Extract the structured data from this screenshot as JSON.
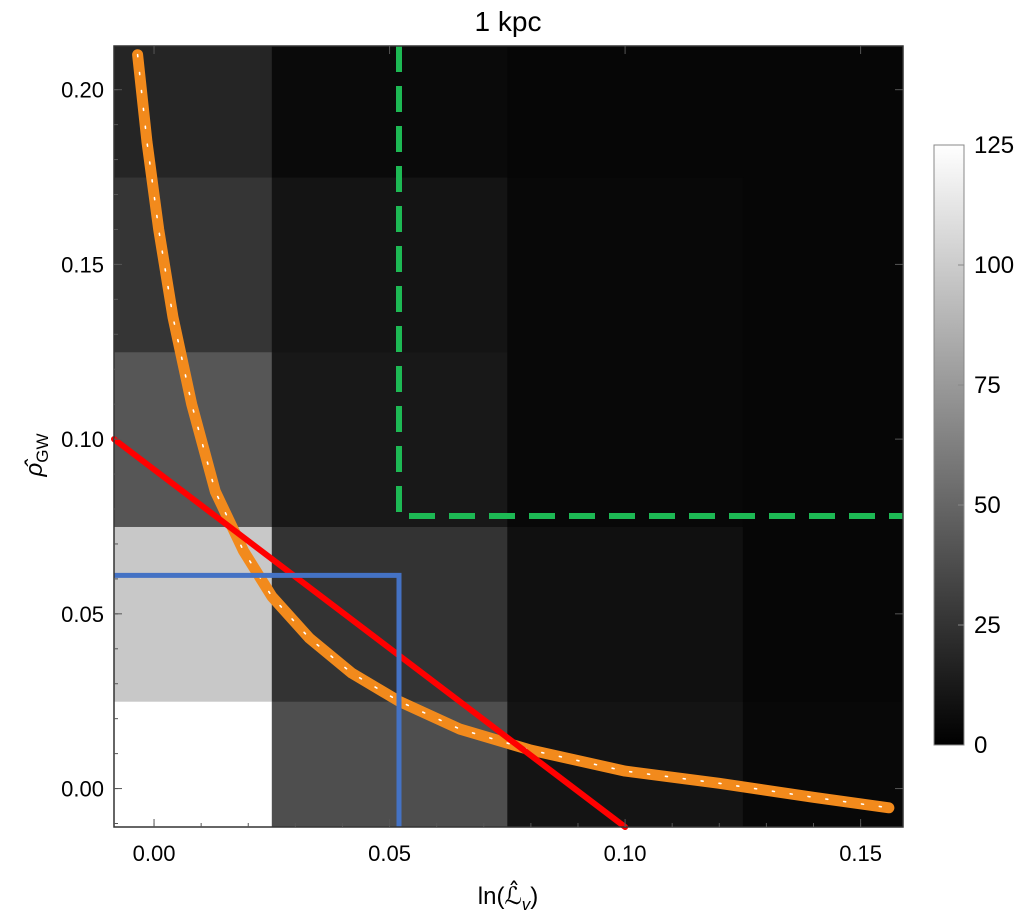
{
  "chart_data": {
    "type": "heatmap",
    "title": "1 kpc",
    "xlabel": "ln(ℒ̂",
    "xlabel_sub": "v",
    "xlabel_close": ")",
    "ylabel": "ρ̂",
    "ylabel_sub": "GW",
    "xlim": [
      -0.0085,
      0.159
    ],
    "ylim": [
      -0.011,
      0.2125
    ],
    "x_ticks": [
      0.0,
      0.05,
      0.1,
      0.15
    ],
    "x_tick_labels": [
      "0.00",
      "0.05",
      "0.10",
      "0.15"
    ],
    "y_ticks": [
      0.0,
      0.05,
      0.1,
      0.15,
      0.2
    ],
    "y_tick_labels": [
      "0.00",
      "0.05",
      "0.10",
      "0.15",
      "0.20"
    ],
    "x_bin_edges": [
      -0.0085,
      0.025,
      0.075,
      0.125,
      0.159
    ],
    "y_bin_edges": [
      -0.011,
      0.025,
      0.075,
      0.125,
      0.175,
      0.2125
    ],
    "counts": [
      [
        125,
        38,
        10,
        4
      ],
      [
        98,
        25,
        8,
        3
      ],
      [
        42,
        12,
        4,
        3
      ],
      [
        26,
        10,
        4,
        3
      ],
      [
        18,
        5,
        3,
        3
      ]
    ],
    "colorbar": {
      "min": 0,
      "max": 125,
      "ticks": [
        0,
        25,
        50,
        75,
        100,
        125
      ],
      "tick_labels": [
        "0",
        "25",
        "50",
        "75",
        "100",
        "125"
      ]
    },
    "overlays": [
      {
        "kind": "curve",
        "color": "#f28a1c",
        "points": [
          [
            -0.0035,
            0.21
          ],
          [
            -0.0015,
            0.185
          ],
          [
            0.001,
            0.16
          ],
          [
            0.004,
            0.135
          ],
          [
            0.008,
            0.11
          ],
          [
            0.013,
            0.085
          ],
          [
            0.019,
            0.068
          ],
          [
            0.025,
            0.055
          ],
          [
            0.033,
            0.043
          ],
          [
            0.042,
            0.033
          ],
          [
            0.052,
            0.025
          ],
          [
            0.065,
            0.017
          ],
          [
            0.08,
            0.011
          ],
          [
            0.1,
            0.005
          ],
          [
            0.12,
            0.0015
          ],
          [
            0.14,
            -0.0025
          ],
          [
            0.156,
            -0.0055
          ]
        ]
      },
      {
        "kind": "line",
        "color": "#ff0000",
        "points": [
          [
            -0.0085,
            0.1
          ],
          [
            0.1,
            -0.011
          ]
        ]
      },
      {
        "kind": "box",
        "color": "#4472c4",
        "points": [
          [
            -0.0085,
            0.061
          ],
          [
            0.052,
            0.061
          ],
          [
            0.052,
            -0.011
          ]
        ]
      },
      {
        "kind": "dashed-box",
        "color": "#1db954",
        "points": [
          [
            0.052,
            0.2125
          ],
          [
            0.052,
            0.078
          ],
          [
            0.159,
            0.078
          ]
        ]
      }
    ]
  }
}
